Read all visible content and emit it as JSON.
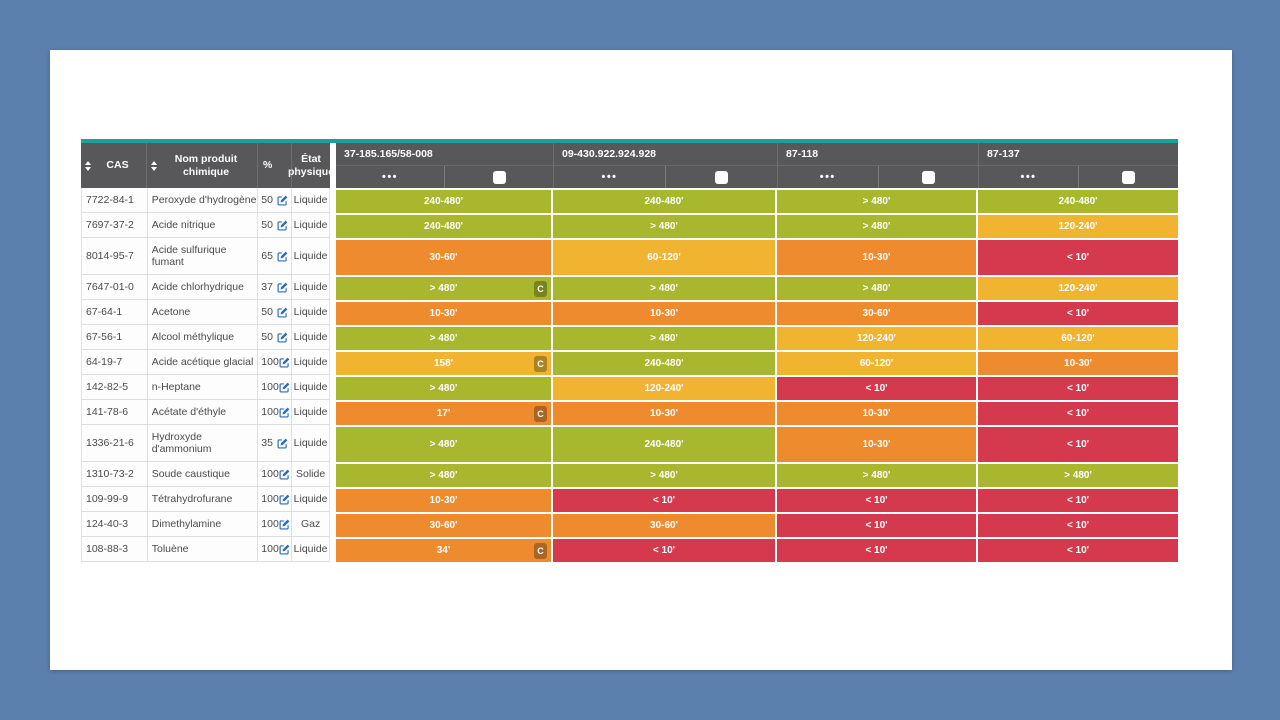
{
  "colors": {
    "pagebg": "#5b80ae",
    "card": "#ffffff",
    "teal": "#1ca198",
    "header": "#58585a",
    "green": "#a8b72e",
    "orange": "#ee8b2e",
    "amber": "#f0b431",
    "red": "#d5394e",
    "edit_icon_blue": "#2a6db8"
  },
  "table": {
    "columns": {
      "cas": "CAS",
      "name": "Nom produit chimique",
      "percent": "%",
      "state": "État physique"
    },
    "glove_menu_icon": "•••",
    "gloves": [
      {
        "code": "37-185.165/58-008"
      },
      {
        "code": "09-430.922.924.928"
      },
      {
        "code": "87-118"
      },
      {
        "code": "87-137"
      }
    ],
    "rows": [
      {
        "cas": "7722-84-1",
        "name": "Peroxyde d'hydrogène",
        "percent": "50",
        "state": "Liquide",
        "results": [
          {
            "label": "240-480'",
            "color": "green"
          },
          {
            "label": "240-480'",
            "color": "green"
          },
          {
            "label": "> 480'",
            "color": "green"
          },
          {
            "label": "240-480'",
            "color": "green"
          }
        ]
      },
      {
        "cas": "7697-37-2",
        "name": "Acide nitrique",
        "percent": "50",
        "state": "Liquide",
        "results": [
          {
            "label": "240-480'",
            "color": "green"
          },
          {
            "label": "> 480'",
            "color": "green"
          },
          {
            "label": "> 480'",
            "color": "green"
          },
          {
            "label": "120-240'",
            "color": "amber"
          }
        ]
      },
      {
        "cas": "8014-95-7",
        "name": "Acide sulfurique fumant",
        "percent": "65",
        "state": "Liquide",
        "results": [
          {
            "label": "30-60'",
            "color": "orange"
          },
          {
            "label": "60-120'",
            "color": "amber"
          },
          {
            "label": "10-30'",
            "color": "orange"
          },
          {
            "label": "< 10'",
            "color": "red"
          }
        ]
      },
      {
        "cas": "7647-01-0",
        "name": "Acide chlorhydrique",
        "percent": "37",
        "state": "Liquide",
        "results": [
          {
            "label": "> 480'",
            "color": "green",
            "badge": "C"
          },
          {
            "label": "> 480'",
            "color": "green"
          },
          {
            "label": "> 480'",
            "color": "green"
          },
          {
            "label": "120-240'",
            "color": "amber"
          }
        ]
      },
      {
        "cas": "67-64-1",
        "name": "Acetone",
        "percent": "50",
        "state": "Liquide",
        "results": [
          {
            "label": "10-30'",
            "color": "orange"
          },
          {
            "label": "10-30'",
            "color": "orange"
          },
          {
            "label": "30-60'",
            "color": "orange"
          },
          {
            "label": "< 10'",
            "color": "red"
          }
        ]
      },
      {
        "cas": "67-56-1",
        "name": "Alcool méthylique",
        "percent": "50",
        "state": "Liquide",
        "results": [
          {
            "label": "> 480'",
            "color": "green"
          },
          {
            "label": "> 480'",
            "color": "green"
          },
          {
            "label": "120-240'",
            "color": "amber"
          },
          {
            "label": "60-120'",
            "color": "amber"
          }
        ]
      },
      {
        "cas": "64-19-7",
        "name": "Acide acétique glacial",
        "percent": "100",
        "state": "Liquide",
        "results": [
          {
            "label": "158'",
            "color": "amber",
            "badge": "C"
          },
          {
            "label": "240-480'",
            "color": "green"
          },
          {
            "label": "60-120'",
            "color": "amber"
          },
          {
            "label": "10-30'",
            "color": "orange"
          }
        ]
      },
      {
        "cas": "142-82-5",
        "name": "n-Heptane",
        "percent": "100",
        "state": "Liquide",
        "results": [
          {
            "label": "> 480'",
            "color": "green"
          },
          {
            "label": "120-240'",
            "color": "amber"
          },
          {
            "label": "< 10'",
            "color": "red"
          },
          {
            "label": "< 10'",
            "color": "red"
          }
        ]
      },
      {
        "cas": "141-78-6",
        "name": "Acétate d'éthyle",
        "percent": "100",
        "state": "Liquide",
        "results": [
          {
            "label": "17'",
            "color": "orange",
            "badge": "C"
          },
          {
            "label": "10-30'",
            "color": "orange"
          },
          {
            "label": "10-30'",
            "color": "orange"
          },
          {
            "label": "< 10'",
            "color": "red"
          }
        ]
      },
      {
        "cas": "1336-21-6",
        "name": "Hydroxyde d'ammonium",
        "percent": "35",
        "state": "Liquide",
        "results": [
          {
            "label": "> 480'",
            "color": "green"
          },
          {
            "label": "240-480'",
            "color": "green"
          },
          {
            "label": "10-30'",
            "color": "orange"
          },
          {
            "label": "< 10'",
            "color": "red"
          }
        ]
      },
      {
        "cas": "1310-73-2",
        "name": "Soude caustique",
        "percent": "100",
        "state": "Solide",
        "results": [
          {
            "label": "> 480'",
            "color": "green"
          },
          {
            "label": "> 480'",
            "color": "green"
          },
          {
            "label": "> 480'",
            "color": "green"
          },
          {
            "label": "> 480'",
            "color": "green"
          }
        ]
      },
      {
        "cas": "109-99-9",
        "name": "Tétrahydrofurane",
        "percent": "100",
        "state": "Liquide",
        "results": [
          {
            "label": "10-30'",
            "color": "orange"
          },
          {
            "label": "< 10'",
            "color": "red"
          },
          {
            "label": "< 10'",
            "color": "red"
          },
          {
            "label": "< 10'",
            "color": "red"
          }
        ]
      },
      {
        "cas": "124-40-3",
        "name": "Dimethylamine",
        "percent": "100",
        "state": "Gaz",
        "results": [
          {
            "label": "30-60'",
            "color": "orange"
          },
          {
            "label": "30-60'",
            "color": "orange"
          },
          {
            "label": "< 10'",
            "color": "red"
          },
          {
            "label": "< 10'",
            "color": "red"
          }
        ]
      },
      {
        "cas": "108-88-3",
        "name": "Toluène",
        "percent": "100",
        "state": "Liquide",
        "results": [
          {
            "label": "34'",
            "color": "orange",
            "badge": "C"
          },
          {
            "label": "< 10'",
            "color": "red"
          },
          {
            "label": "< 10'",
            "color": "red"
          },
          {
            "label": "< 10'",
            "color": "red"
          }
        ]
      }
    ]
  }
}
